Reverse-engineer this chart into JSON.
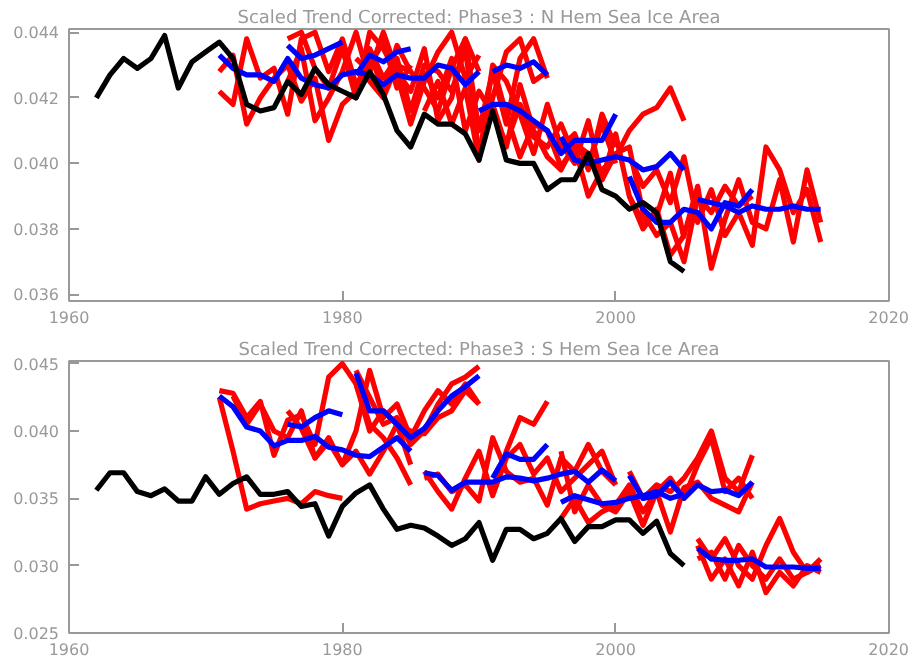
{
  "chart_data": [
    {
      "type": "line",
      "title": "Scaled Trend Corrected: Phase3 : N Hem Sea Ice Area",
      "xlim": [
        1960,
        2020
      ],
      "xticks": [
        1960,
        1980,
        2000,
        2020
      ],
      "ylim": [
        0.0358,
        0.0441
      ],
      "yticks": [
        {
          "value": 0.036,
          "label": "0.036"
        },
        {
          "value": 0.038,
          "label": "0.038"
        },
        {
          "value": 0.04,
          "label": "0.040"
        },
        {
          "value": 0.042,
          "label": "0.042"
        },
        {
          "value": 0.044,
          "label": "0.044"
        }
      ],
      "grid": false,
      "series": [
        {
          "color": "#ff0000",
          "x": [
            1971,
            1972,
            1973,
            1974,
            1975,
            1976,
            1977,
            1978,
            1979,
            1980,
            1981,
            1982,
            1983,
            1984,
            1985
          ],
          "values": [
            0.0428,
            0.0433,
            0.0412,
            0.042,
            0.0426,
            0.043,
            0.0419,
            0.0426,
            0.0407,
            0.0418,
            0.0422,
            0.0434,
            0.0422,
            0.0436,
            0.0428
          ]
        },
        {
          "color": "#ff0000",
          "x": [
            1971,
            1972,
            1973,
            1974,
            1975,
            1976,
            1977,
            1978,
            1979,
            1980,
            1981,
            1982,
            1983,
            1984,
            1985
          ],
          "values": [
            0.0422,
            0.0418,
            0.0438,
            0.0426,
            0.0429,
            0.0415,
            0.0438,
            0.044,
            0.0428,
            0.0438,
            0.0424,
            0.043,
            0.0437,
            0.0423,
            0.043
          ]
        },
        {
          "color": "#ff0000",
          "x": [
            1976,
            1977,
            1978,
            1979,
            1980,
            1981,
            1982,
            1983,
            1984,
            1985,
            1986,
            1987,
            1988,
            1989,
            1990
          ],
          "values": [
            0.0438,
            0.044,
            0.0429,
            0.0423,
            0.0435,
            0.042,
            0.044,
            0.0435,
            0.0427,
            0.0412,
            0.0425,
            0.0434,
            0.044,
            0.0426,
            0.0433
          ]
        },
        {
          "color": "#ff0000",
          "x": [
            1976,
            1977,
            1978,
            1979,
            1980,
            1981,
            1982,
            1983,
            1984,
            1985,
            1986,
            1987,
            1988,
            1989,
            1990
          ],
          "values": [
            0.0425,
            0.0435,
            0.0413,
            0.042,
            0.0428,
            0.044,
            0.0425,
            0.042,
            0.043,
            0.0428,
            0.0423,
            0.0416,
            0.0429,
            0.0438,
            0.0428
          ]
        },
        {
          "color": "#ff0000",
          "x": [
            1981,
            1982,
            1983,
            1984,
            1985,
            1986,
            1987,
            1988,
            1989,
            1990,
            1991,
            1992,
            1993,
            1994,
            1995
          ],
          "values": [
            0.042,
            0.0435,
            0.0426,
            0.0432,
            0.0416,
            0.043,
            0.0428,
            0.0422,
            0.0435,
            0.0403,
            0.042,
            0.0434,
            0.0438,
            0.0425,
            0.0428
          ]
        },
        {
          "color": "#ff0000",
          "x": [
            1981,
            1982,
            1983,
            1984,
            1985,
            1986,
            1987,
            1988,
            1989,
            1990,
            1991,
            1992,
            1993,
            1994,
            1995
          ],
          "values": [
            0.0432,
            0.0428,
            0.044,
            0.0428,
            0.0422,
            0.0435,
            0.0413,
            0.042,
            0.0438,
            0.041,
            0.0428,
            0.0412,
            0.0432,
            0.0438,
            0.0426
          ]
        },
        {
          "color": "#ff0000",
          "x": [
            1986,
            1987,
            1988,
            1989,
            1990,
            1991,
            1992,
            1993,
            1994,
            1995,
            1996,
            1997,
            1998,
            1999,
            2000
          ],
          "values": [
            0.0428,
            0.042,
            0.0432,
            0.041,
            0.0422,
            0.0415,
            0.0406,
            0.0418,
            0.0408,
            0.0405,
            0.0412,
            0.0402,
            0.04,
            0.0412,
            0.04
          ]
        },
        {
          "color": "#ff0000",
          "x": [
            1986,
            1987,
            1988,
            1989,
            1990,
            1991,
            1992,
            1993,
            1994,
            1995,
            1996,
            1997,
            1998,
            1999,
            2000
          ],
          "values": [
            0.0416,
            0.0425,
            0.0412,
            0.0423,
            0.0401,
            0.043,
            0.0425,
            0.0415,
            0.0403,
            0.0418,
            0.0405,
            0.0409,
            0.0398,
            0.0415,
            0.0405
          ]
        },
        {
          "color": "#ff0000",
          "x": [
            1991,
            1992,
            1993,
            1994,
            1995,
            1996,
            1997,
            1998,
            1999,
            2000,
            2001,
            2002,
            2003,
            2004,
            2005
          ],
          "values": [
            0.0418,
            0.0405,
            0.0424,
            0.041,
            0.0402,
            0.0398,
            0.0406,
            0.0403,
            0.0395,
            0.0409,
            0.039,
            0.0382,
            0.0384,
            0.0397,
            0.0377
          ]
        },
        {
          "color": "#ff0000",
          "x": [
            1991,
            1992,
            1993,
            1994,
            1995,
            1996,
            1997,
            1998,
            1999,
            2000,
            2001,
            2002,
            2003,
            2004,
            2005
          ],
          "values": [
            0.043,
            0.0415,
            0.0402,
            0.0412,
            0.041,
            0.0399,
            0.0405,
            0.039,
            0.0398,
            0.0402,
            0.041,
            0.0415,
            0.0417,
            0.0423,
            0.0413
          ]
        },
        {
          "color": "#ff0000",
          "x": [
            1996,
            1997,
            1998,
            1999,
            2000,
            2001,
            2002,
            2003,
            2004,
            2005,
            2006,
            2007,
            2008,
            2009,
            2010
          ],
          "values": [
            0.0406,
            0.04,
            0.0413,
            0.0395,
            0.0403,
            0.0405,
            0.0385,
            0.0378,
            0.0382,
            0.037,
            0.039,
            0.0385,
            0.0393,
            0.0387,
            0.039
          ]
        },
        {
          "color": "#ff0000",
          "x": [
            2001,
            2002,
            2003,
            2004,
            2005,
            2006,
            2007,
            2008,
            2009,
            2010,
            2011,
            2012,
            2013,
            2014,
            2015
          ],
          "values": [
            0.039,
            0.038,
            0.0386,
            0.0372,
            0.0378,
            0.0393,
            0.0368,
            0.0383,
            0.0395,
            0.0382,
            0.038,
            0.0395,
            0.0376,
            0.0398,
            0.0382
          ]
        },
        {
          "color": "#ff0000",
          "x": [
            2001,
            2002,
            2003,
            2004,
            2005,
            2006,
            2007,
            2008,
            2009,
            2010,
            2011,
            2012,
            2013,
            2014,
            2015
          ],
          "values": [
            0.0402,
            0.0393,
            0.0398,
            0.0388,
            0.0402,
            0.0382,
            0.0392,
            0.0378,
            0.0385,
            0.0375,
            0.0405,
            0.0398,
            0.0385,
            0.0392,
            0.0376
          ]
        },
        {
          "color": "#0000ff",
          "x": [
            1971,
            1972,
            1973,
            1974,
            1975,
            1976,
            1977,
            1978,
            1979,
            1980,
            1981,
            1982,
            1983,
            1984,
            1985,
            1986,
            1987,
            1988,
            1989,
            1990
          ],
          "values": [
            0.0433,
            0.0429,
            0.0427,
            0.0427,
            0.0425,
            0.0432,
            0.0426,
            0.0424,
            0.0423,
            0.0427,
            0.0428,
            0.0427,
            0.0424,
            0.0427,
            0.0426,
            0.0426,
            0.043,
            0.0429,
            0.0424,
            0.0428
          ]
        },
        {
          "color": "#0000ff",
          "x": [
            1976,
            1977,
            1978,
            1979,
            1980
          ],
          "values": [
            0.0436,
            0.0432,
            0.0433,
            0.0435,
            0.0437
          ]
        },
        {
          "color": "#0000ff",
          "x": [
            1981,
            1982,
            1983,
            1984,
            1985
          ],
          "values": [
            0.0427,
            0.0433,
            0.0431,
            0.0434,
            0.0435
          ]
        },
        {
          "color": "#0000ff",
          "x": [
            1990,
            1991,
            1992,
            1993,
            1994,
            1995,
            1996,
            1997,
            1998,
            1999,
            2000
          ],
          "values": [
            0.0416,
            0.0418,
            0.0418,
            0.0416,
            0.0413,
            0.041,
            0.0403,
            0.0407,
            0.0407,
            0.0407,
            0.0415
          ]
        },
        {
          "color": "#0000ff",
          "x": [
            1991,
            1992,
            1993,
            1994,
            1995
          ],
          "values": [
            0.0428,
            0.043,
            0.0429,
            0.0431,
            0.0427
          ]
        },
        {
          "color": "#0000ff",
          "x": [
            1996,
            1997,
            1998,
            1999,
            2000,
            2001,
            2002,
            2003,
            2004,
            2005
          ],
          "values": [
            0.0408,
            0.0401,
            0.04,
            0.0401,
            0.0402,
            0.0401,
            0.0398,
            0.0399,
            0.0403,
            0.0398
          ]
        },
        {
          "color": "#0000ff",
          "x": [
            2001,
            2002,
            2003,
            2004,
            2005,
            2006,
            2007,
            2008,
            2009,
            2010
          ],
          "values": [
            0.0396,
            0.0386,
            0.0382,
            0.0382,
            0.0386,
            0.0385,
            0.038,
            0.0388,
            0.0387,
            0.0392
          ]
        },
        {
          "color": "#0000ff",
          "x": [
            2006,
            2007,
            2008,
            2009,
            2010,
            2011,
            2012,
            2013,
            2014,
            2015
          ],
          "values": [
            0.0389,
            0.0388,
            0.0387,
            0.0385,
            0.0387,
            0.0386,
            0.0386,
            0.0387,
            0.0386,
            0.0386
          ]
        },
        {
          "color": "#000000",
          "x": [
            1962,
            1963,
            1964,
            1965,
            1966,
            1967,
            1968,
            1969,
            1970,
            1971,
            1972,
            1973,
            1974,
            1975,
            1976,
            1977,
            1978,
            1979,
            1980,
            1981,
            1982,
            1983,
            1984,
            1985,
            1986,
            1987,
            1988,
            1989,
            1990,
            1991,
            1992,
            1993,
            1994,
            1995,
            1996,
            1997,
            1998,
            1999,
            2000,
            2001,
            2002,
            2003,
            2004,
            2005
          ],
          "values": [
            0.042,
            0.0427,
            0.0432,
            0.0429,
            0.0432,
            0.0439,
            0.0423,
            0.0431,
            0.0434,
            0.0437,
            0.0432,
            0.0418,
            0.0416,
            0.0417,
            0.0425,
            0.0421,
            0.0429,
            0.0424,
            0.0422,
            0.042,
            0.0428,
            0.0421,
            0.041,
            0.0405,
            0.0415,
            0.0412,
            0.0412,
            0.0409,
            0.0401,
            0.0416,
            0.0401,
            0.04,
            0.04,
            0.0392,
            0.0395,
            0.0395,
            0.0403,
            0.0392,
            0.039,
            0.0386,
            0.0388,
            0.0385,
            0.037,
            0.0367
          ]
        }
      ]
    },
    {
      "type": "line",
      "title": "Scaled Trend Corrected: Phase3 : S Hem Sea Ice Area",
      "xlim": [
        1960,
        2020
      ],
      "xticks": [
        1960,
        1980,
        2000,
        2020
      ],
      "ylim": [
        0.025,
        0.0452
      ],
      "yticks": [
        {
          "value": 0.025,
          "label": "0.025"
        },
        {
          "value": 0.03,
          "label": "0.030"
        },
        {
          "value": 0.035,
          "label": "0.035"
        },
        {
          "value": 0.04,
          "label": "0.040"
        },
        {
          "value": 0.045,
          "label": "0.045"
        }
      ],
      "grid": false,
      "series": [
        {
          "color": "#ff0000",
          "x": [
            1971,
            1972,
            1973,
            1974,
            1975,
            1976,
            1977,
            1978,
            1979,
            1980,
            1981,
            1982,
            1983,
            1984,
            1985
          ],
          "values": [
            0.043,
            0.0428,
            0.041,
            0.0422,
            0.0382,
            0.0408,
            0.0412,
            0.039,
            0.044,
            0.045,
            0.0435,
            0.0405,
            0.0395,
            0.038,
            0.036
          ]
        },
        {
          "color": "#ff0000",
          "x": [
            1971,
            1972,
            1973,
            1974,
            1975,
            1976,
            1977,
            1978,
            1979,
            1980
          ],
          "values": [
            0.0425,
            0.0385,
            0.0342,
            0.0346,
            0.0348,
            0.035,
            0.0346,
            0.0355,
            0.0352,
            0.035
          ]
        },
        {
          "color": "#ff0000",
          "x": [
            1972,
            1973,
            1974,
            1975,
            1976,
            1977,
            1978,
            1979,
            1980,
            1981,
            1982,
            1983,
            1984,
            1985
          ],
          "values": [
            0.0426,
            0.0405,
            0.042,
            0.04,
            0.0395,
            0.0415,
            0.038,
            0.0395,
            0.0375,
            0.0385,
            0.0368,
            0.0385,
            0.0405,
            0.0375
          ]
        },
        {
          "color": "#ff0000",
          "x": [
            1976,
            1977,
            1978,
            1979,
            1980,
            1981,
            1982,
            1983,
            1984,
            1985,
            1986,
            1987,
            1988,
            1989,
            1990
          ],
          "values": [
            0.0415,
            0.0402,
            0.038,
            0.0392,
            0.0375,
            0.04,
            0.0445,
            0.041,
            0.042,
            0.0395,
            0.0415,
            0.043,
            0.042,
            0.0435,
            0.042
          ]
        },
        {
          "color": "#ff0000",
          "x": [
            1981,
            1982,
            1983,
            1984,
            1985,
            1986,
            1987,
            1988,
            1989,
            1990
          ],
          "values": [
            0.0445,
            0.0425,
            0.0405,
            0.041,
            0.039,
            0.04,
            0.042,
            0.0435,
            0.044,
            0.0448
          ]
        },
        {
          "color": "#ff0000",
          "x": [
            1981,
            1982,
            1983,
            1984,
            1985,
            1986,
            1987,
            1988,
            1989,
            1990
          ],
          "values": [
            0.0435,
            0.04,
            0.0415,
            0.0405,
            0.04,
            0.0398,
            0.041,
            0.0415,
            0.043,
            0.042
          ]
        },
        {
          "color": "#ff0000",
          "x": [
            1986,
            1987,
            1988,
            1989,
            1990,
            1991,
            1992,
            1993,
            1994,
            1995,
            1996,
            1997,
            1998,
            1999,
            2000
          ],
          "values": [
            0.0365,
            0.0368,
            0.0355,
            0.036,
            0.0348,
            0.0395,
            0.037,
            0.0362,
            0.0365,
            0.0345,
            0.038,
            0.037,
            0.039,
            0.037,
            0.036
          ]
        },
        {
          "color": "#ff0000",
          "x": [
            1986,
            1987,
            1988,
            1989,
            1990,
            1991,
            1992,
            1993,
            1994,
            1995,
            1996,
            1997,
            1998,
            1999,
            2000
          ],
          "values": [
            0.037,
            0.0355,
            0.0342,
            0.0365,
            0.0385,
            0.0352,
            0.038,
            0.039,
            0.0368,
            0.038,
            0.0355,
            0.0365,
            0.0375,
            0.0385,
            0.036
          ]
        },
        {
          "color": "#ff0000",
          "x": [
            1991,
            1992,
            1993,
            1994,
            1995
          ],
          "values": [
            0.0355,
            0.0385,
            0.041,
            0.0405,
            0.0422
          ]
        },
        {
          "color": "#ff0000",
          "x": [
            1996,
            1997,
            1998,
            1999,
            2000,
            2001,
            2002,
            2003,
            2004,
            2005,
            2006,
            2007,
            2008,
            2009,
            2010
          ],
          "values": [
            0.0335,
            0.035,
            0.0332,
            0.034,
            0.0345,
            0.036,
            0.034,
            0.0355,
            0.0325,
            0.0358,
            0.0362,
            0.035,
            0.0345,
            0.034,
            0.0362
          ]
        },
        {
          "color": "#ff0000",
          "x": [
            1996,
            1997,
            1998,
            1999,
            2000,
            2001,
            2002,
            2003,
            2004,
            2005,
            2006,
            2007,
            2008,
            2009,
            2010
          ],
          "values": [
            0.0385,
            0.034,
            0.036,
            0.0345,
            0.034,
            0.0355,
            0.033,
            0.0355,
            0.0365,
            0.035,
            0.0375,
            0.0395,
            0.0355,
            0.0365,
            0.035
          ]
        },
        {
          "color": "#ff0000",
          "x": [
            2001,
            2002,
            2003,
            2004,
            2005,
            2006,
            2007,
            2008,
            2009,
            2010
          ],
          "values": [
            0.037,
            0.035,
            0.036,
            0.0355,
            0.0365,
            0.038,
            0.04,
            0.0365,
            0.0355,
            0.0382
          ]
        },
        {
          "color": "#ff0000",
          "x": [
            2006,
            2007,
            2008,
            2009,
            2010,
            2011,
            2012,
            2013,
            2014,
            2015
          ],
          "values": [
            0.032,
            0.0305,
            0.032,
            0.03,
            0.029,
            0.0315,
            0.0335,
            0.031,
            0.0295,
            0.03
          ]
        },
        {
          "color": "#ff0000",
          "x": [
            2006,
            2007,
            2008,
            2009,
            2010,
            2011,
            2012,
            2013,
            2014,
            2015
          ],
          "values": [
            0.0315,
            0.029,
            0.0305,
            0.0285,
            0.031,
            0.028,
            0.0295,
            0.0285,
            0.03,
            0.0295
          ]
        },
        {
          "color": "#ff0000",
          "x": [
            2006,
            2007,
            2008,
            2009,
            2010,
            2011,
            2012,
            2013,
            2014,
            2015
          ],
          "values": [
            0.0305,
            0.031,
            0.029,
            0.0315,
            0.03,
            0.029,
            0.0305,
            0.029,
            0.0295,
            0.0305
          ]
        },
        {
          "color": "#0000ff",
          "x": [
            1971,
            1972,
            1973,
            1974,
            1975,
            1976,
            1977,
            1978,
            1979,
            1980,
            1981,
            1982,
            1983,
            1984,
            1985
          ],
          "values": [
            0.0426,
            0.0418,
            0.0403,
            0.04,
            0.0389,
            0.0393,
            0.0393,
            0.0396,
            0.0388,
            0.0386,
            0.0382,
            0.0381,
            0.0388,
            0.0395,
            0.0385
          ]
        },
        {
          "color": "#0000ff",
          "x": [
            1976,
            1977,
            1978,
            1979,
            1980
          ],
          "values": [
            0.0405,
            0.0403,
            0.041,
            0.0415,
            0.0412
          ]
        },
        {
          "color": "#0000ff",
          "x": [
            1981,
            1982,
            1983,
            1984,
            1985,
            1986,
            1987,
            1988,
            1989,
            1990
          ],
          "values": [
            0.0443,
            0.0415,
            0.0415,
            0.0405,
            0.0395,
            0.0402,
            0.0415,
            0.0426,
            0.0433,
            0.0441
          ]
        },
        {
          "color": "#0000ff",
          "x": [
            1986,
            1987,
            1988,
            1989,
            1990,
            1991,
            1992,
            1993,
            1994,
            1995,
            1996,
            1997,
            1998,
            1999,
            2000
          ],
          "values": [
            0.0369,
            0.0367,
            0.0356,
            0.0362,
            0.0362,
            0.0362,
            0.0366,
            0.0365,
            0.0363,
            0.0365,
            0.0368,
            0.037,
            0.0362,
            0.0371,
            0.0363
          ]
        },
        {
          "color": "#0000ff",
          "x": [
            1991,
            1992,
            1993,
            1994,
            1995
          ],
          "values": [
            0.0365,
            0.0383,
            0.0379,
            0.0379,
            0.039
          ]
        },
        {
          "color": "#0000ff",
          "x": [
            1996,
            1997,
            1998,
            1999,
            2000,
            2001,
            2002,
            2003,
            2004,
            2005
          ],
          "values": [
            0.0347,
            0.0352,
            0.0349,
            0.0346,
            0.0347,
            0.035,
            0.0352,
            0.0355,
            0.035,
            0.0353
          ]
        },
        {
          "color": "#0000ff",
          "x": [
            2001,
            2002,
            2003,
            2004,
            2005,
            2006,
            2007,
            2008,
            2009,
            2010
          ],
          "values": [
            0.0367,
            0.035,
            0.0352,
            0.0362,
            0.035,
            0.036,
            0.0355,
            0.0356,
            0.0352,
            0.0362
          ]
        },
        {
          "color": "#0000ff",
          "x": [
            2006,
            2007,
            2008,
            2009,
            2010,
            2011,
            2012,
            2013,
            2014,
            2015
          ],
          "values": [
            0.0313,
            0.0305,
            0.0304,
            0.0304,
            0.0305,
            0.0299,
            0.0299,
            0.0299,
            0.0298,
            0.0298
          ]
        },
        {
          "color": "#000000",
          "x": [
            1962,
            1963,
            1964,
            1965,
            1966,
            1967,
            1968,
            1969,
            1970,
            1971,
            1972,
            1973,
            1974,
            1975,
            1976,
            1977,
            1978,
            1979,
            1980,
            1981,
            1982,
            1983,
            1984,
            1985,
            1986,
            1987,
            1988,
            1989,
            1990,
            1991,
            1992,
            1993,
            1994,
            1995,
            1996,
            1997,
            1998,
            1999,
            2000,
            2001,
            2002,
            2003,
            2004,
            2005
          ],
          "values": [
            0.0356,
            0.0369,
            0.0369,
            0.0355,
            0.0352,
            0.0357,
            0.0348,
            0.0348,
            0.0366,
            0.0353,
            0.0361,
            0.0366,
            0.0353,
            0.0353,
            0.0355,
            0.0344,
            0.0346,
            0.0322,
            0.0344,
            0.0354,
            0.036,
            0.0342,
            0.0327,
            0.033,
            0.0328,
            0.0322,
            0.0315,
            0.032,
            0.0332,
            0.0304,
            0.0327,
            0.0327,
            0.032,
            0.0324,
            0.0335,
            0.0318,
            0.0329,
            0.0329,
            0.0334,
            0.0334,
            0.0324,
            0.0333,
            0.0309,
            0.03
          ]
        }
      ]
    }
  ]
}
